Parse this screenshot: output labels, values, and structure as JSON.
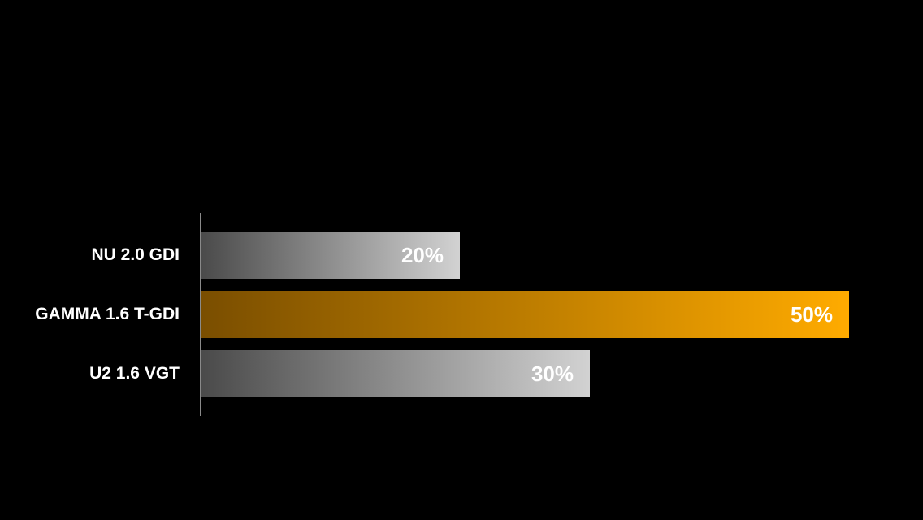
{
  "chart_data": {
    "type": "bar",
    "orientation": "horizontal",
    "categories": [
      "NU 2.0 GDI",
      "GAMMA 1.6 T-GDI",
      "U2 1.6 VGT"
    ],
    "values": [
      20,
      50,
      30
    ],
    "value_labels": [
      "20%",
      "50%",
      "30%"
    ],
    "unit": "%",
    "xlim": [
      0,
      50
    ],
    "grid": false,
    "legend": "none",
    "bar_colors": [
      {
        "from": "#4a4a4a",
        "to": "#d2d2d2"
      },
      {
        "from": "#7a4e00",
        "to": "#ffab00"
      },
      {
        "from": "#4a4a4a",
        "to": "#d2d2d2"
      }
    ],
    "background": "#000000"
  }
}
